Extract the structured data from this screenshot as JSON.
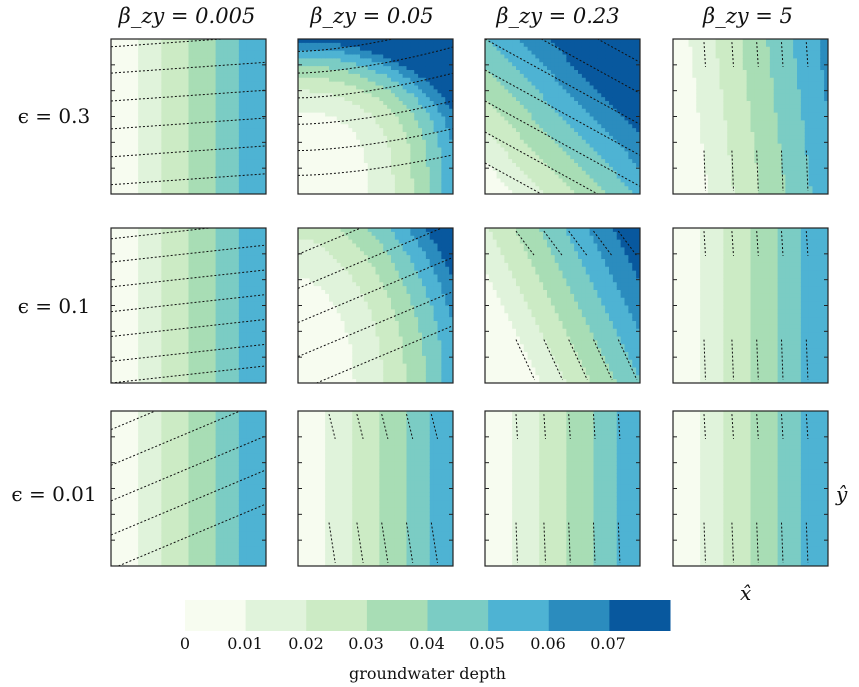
{
  "chart_data": {
    "type": "heatmap",
    "title": "",
    "xlabel": "x̂",
    "ylabel": "ŷ",
    "columns": [
      {
        "label": "β_zy = 0.005",
        "beta_zy": 0.005
      },
      {
        "label": "β_zy = 0.05",
        "beta_zy": 0.05
      },
      {
        "label": "β_zy = 0.23",
        "beta_zy": 0.23
      },
      {
        "label": "β_zy = 5",
        "beta_zy": 5
      }
    ],
    "rows": [
      {
        "label": "ϵ = 0.3",
        "epsilon": 0.3
      },
      {
        "label": "ϵ = 0.1",
        "epsilon": 0.1
      },
      {
        "label": "ϵ = 0.01",
        "epsilon": 0.01
      }
    ],
    "panels": [
      [
        {
          "field": "vbands",
          "stream_slope": -0.07,
          "stream_offsets": [
            0.05,
            0.22,
            0.4,
            0.58,
            0.76,
            0.94
          ],
          "stream_start": 0.0
        },
        {
          "field": "lshape",
          "stream": "curves"
        },
        {
          "field": "diagonal",
          "stream_slope": 0.55,
          "stream_offsets": [
            -0.6,
            -0.4,
            -0.2,
            0.0,
            0.2,
            0.4,
            0.6,
            0.8
          ],
          "stream_start": 0.0
        },
        {
          "field": "steep_vbands",
          "stream": "vertical_ticks"
        }
      ],
      [
        {
          "field": "vbands",
          "stream_slope": -0.11,
          "stream_offsets": [
            0.07,
            0.22,
            0.38,
            0.54,
            0.7,
            0.86,
            1.0
          ],
          "stream_start": 0.0
        },
        {
          "field": "rounded",
          "stream_slope": -0.42,
          "stream_offsets": [
            -0.05,
            0.17,
            0.39,
            0.61,
            0.83,
            1.05
          ],
          "stream_start": 0.0
        },
        {
          "field": "tilted",
          "stream": "tilted_ticks"
        },
        {
          "field": "vbands",
          "stream": "vertical_ticks"
        }
      ],
      [
        {
          "field": "vbands",
          "stream_slope": -0.42,
          "stream_offsets": [
            -0.1,
            0.12,
            0.35,
            0.58,
            0.8,
            1.02
          ],
          "stream_start": 0.0
        },
        {
          "field": "vbands_soft",
          "stream": "tilted_ticks_small"
        },
        {
          "field": "vbands_soft",
          "stream": "vertical_ticks"
        },
        {
          "field": "vbands",
          "stream": "vertical_ticks"
        }
      ]
    ],
    "colorbar": {
      "label": "groundwater depth",
      "boundaries": [
        0,
        0.01,
        0.02,
        0.03,
        0.04,
        0.05,
        0.06,
        0.07,
        0.08
      ],
      "tick_labels": [
        "0",
        "0.01",
        "0.02",
        "0.03",
        "0.04",
        "0.05",
        "0.06",
        "0.07"
      ],
      "colors": [
        "#f7fcf0",
        "#e0f3db",
        "#ccebc5",
        "#a8ddb5",
        "#7bccc4",
        "#4eb3d3",
        "#2b8cbe",
        "#08589e"
      ]
    },
    "streamline_style": "dotted black"
  }
}
